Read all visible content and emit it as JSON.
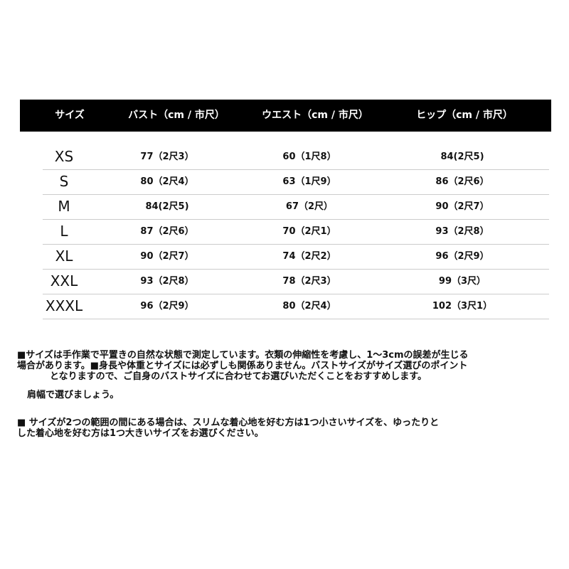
{
  "table": {
    "header": [
      "サイズ",
      "バスト（cm / 市尺）",
      "ウエスト（cm / 市尺）",
      "ヒップ（cm / 市尺）"
    ],
    "rows": [
      [
        "XS",
        "77（2尺3）",
        "60（1尺8）",
        "84(2尺5)"
      ],
      [
        "S",
        "80（2尺4）",
        "63（1尺9）",
        "86（2尺6）"
      ],
      [
        "M",
        "84(2尺5)",
        "67（2尺）",
        "90（2尺7）"
      ],
      [
        "L",
        "87（2尺6）",
        "70（2尺1）",
        "93（2尺8）"
      ],
      [
        "XL",
        "90（2尺7）",
        "74（2尺2）",
        "96（2尺9）"
      ],
      [
        "XXL",
        "93（2尺8）",
        "78（2尺3）",
        "99（3尺）"
      ],
      [
        "XXXL",
        "96（2尺9）",
        "80（2尺4）",
        "102（3尺1）"
      ]
    ]
  },
  "notes": [
    {
      "lines": [
        "■サイズは手作業で平置きの自然な状態で測定しています。衣類の伸縮性を考慮し、1～3cmの誤差が生じる",
        "場合があります。■身長や体重とサイズには必ずしも関係ありません。バストサイズがサイズ選びのポイント",
        "となりますので、ご自身のバストサイズに合わせてお選びいただくことをおすすめします。",
        "肩幅で選びましょう。"
      ]
    },
    {
      "lines": [
        "■ サイズが2つの範囲の間にある場合は、スリムな着心地を好む方は1つ小さいサイズを、ゆったりと",
        "した着心地を好む方は1つ大きいサイズをお選びください。"
      ]
    }
  ]
}
